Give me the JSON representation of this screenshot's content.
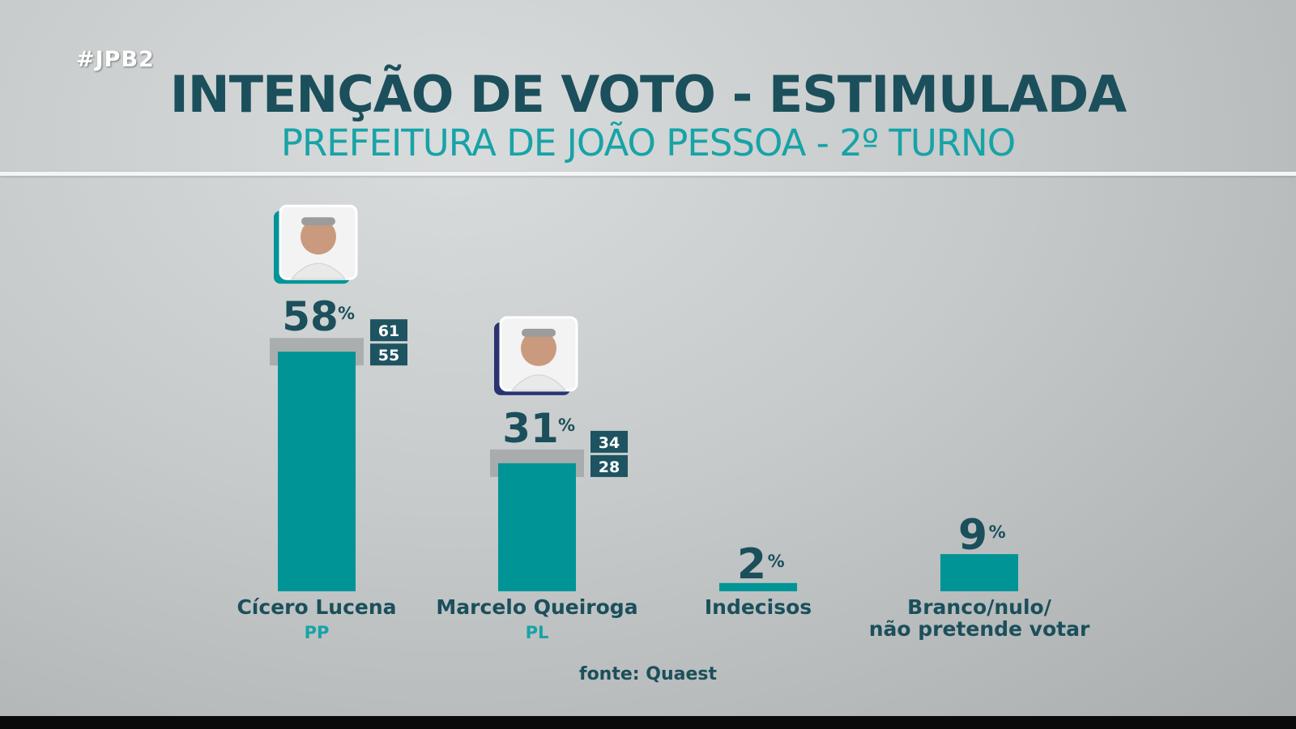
{
  "hashtag": "#JPB2",
  "title": "INTENÇÃO DE VOTO - ESTIMULADA",
  "subtitle": "PREFEITURA DE JOÃO PESSOA - 2º TURNO",
  "source": "fonte: Quaest",
  "colors": {
    "bar": "#009496",
    "title": "#1b4f5b",
    "accent": "#17a3a7",
    "range_box": "#1e5361",
    "margin_band": "#9ea2a2"
  },
  "chart_data": {
    "type": "bar",
    "categories": [
      "Cícero Lucena",
      "Marcelo Queiroga",
      "Indecisos",
      "Branco/nulo/\nnão pretende votar"
    ],
    "category_lines": [
      [
        "Cícero Lucena"
      ],
      [
        "Marcelo Queiroga"
      ],
      [
        "Indecisos"
      ],
      [
        "Branco/nulo/",
        "não pretende votar"
      ]
    ],
    "parties": [
      "PP",
      "PL",
      "",
      ""
    ],
    "values": [
      58,
      31,
      2,
      9
    ],
    "unit": "%",
    "ranges": [
      [
        55,
        61
      ],
      [
        28,
        34
      ],
      null,
      null
    ],
    "candidate_photos": [
      true,
      true,
      false,
      false
    ],
    "ylim": [
      0,
      60
    ],
    "grid": false,
    "legend": "none",
    "xlabel": "",
    "ylabel": ""
  }
}
